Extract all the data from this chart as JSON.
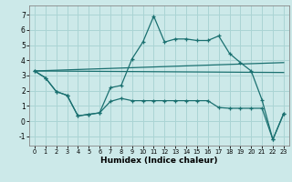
{
  "xlabel": "Humidex (Indice chaleur)",
  "bg_color": "#cce9e9",
  "grid_color": "#aad4d4",
  "line_color": "#1a7070",
  "xlim": [
    -0.5,
    23.5
  ],
  "ylim": [
    -1.6,
    7.6
  ],
  "xticks": [
    0,
    1,
    2,
    3,
    4,
    5,
    6,
    7,
    8,
    9,
    10,
    11,
    12,
    13,
    14,
    15,
    16,
    17,
    18,
    19,
    20,
    21,
    22,
    23
  ],
  "yticks": [
    -1,
    0,
    1,
    2,
    3,
    4,
    5,
    6,
    7
  ],
  "line1_x": [
    0,
    1,
    2,
    3,
    4,
    5,
    6,
    7,
    8,
    9,
    10,
    11,
    12,
    13,
    14,
    15,
    16,
    17,
    18,
    19,
    20,
    21,
    22,
    23
  ],
  "line1_y": [
    3.3,
    2.85,
    1.95,
    1.7,
    0.35,
    0.45,
    0.55,
    2.2,
    2.35,
    4.1,
    5.2,
    6.9,
    5.2,
    5.4,
    5.4,
    5.3,
    5.3,
    5.6,
    4.45,
    3.85,
    3.3,
    1.4,
    -1.2,
    0.5
  ],
  "line2_x": [
    0,
    1,
    2,
    3,
    4,
    5,
    6,
    7,
    8,
    9,
    10,
    11,
    12,
    13,
    14,
    15,
    16,
    17,
    18,
    19,
    20,
    21,
    22,
    23
  ],
  "line2_y": [
    3.3,
    2.85,
    1.95,
    1.7,
    0.35,
    0.45,
    0.55,
    1.3,
    1.5,
    1.35,
    1.35,
    1.35,
    1.35,
    1.35,
    1.35,
    1.35,
    1.35,
    0.9,
    0.85,
    0.85,
    0.85,
    0.85,
    -1.2,
    0.5
  ],
  "line3_x": [
    0,
    23
  ],
  "line3_y": [
    3.3,
    3.85
  ],
  "line4_x": [
    0,
    23
  ],
  "line4_y": [
    3.3,
    3.2
  ]
}
